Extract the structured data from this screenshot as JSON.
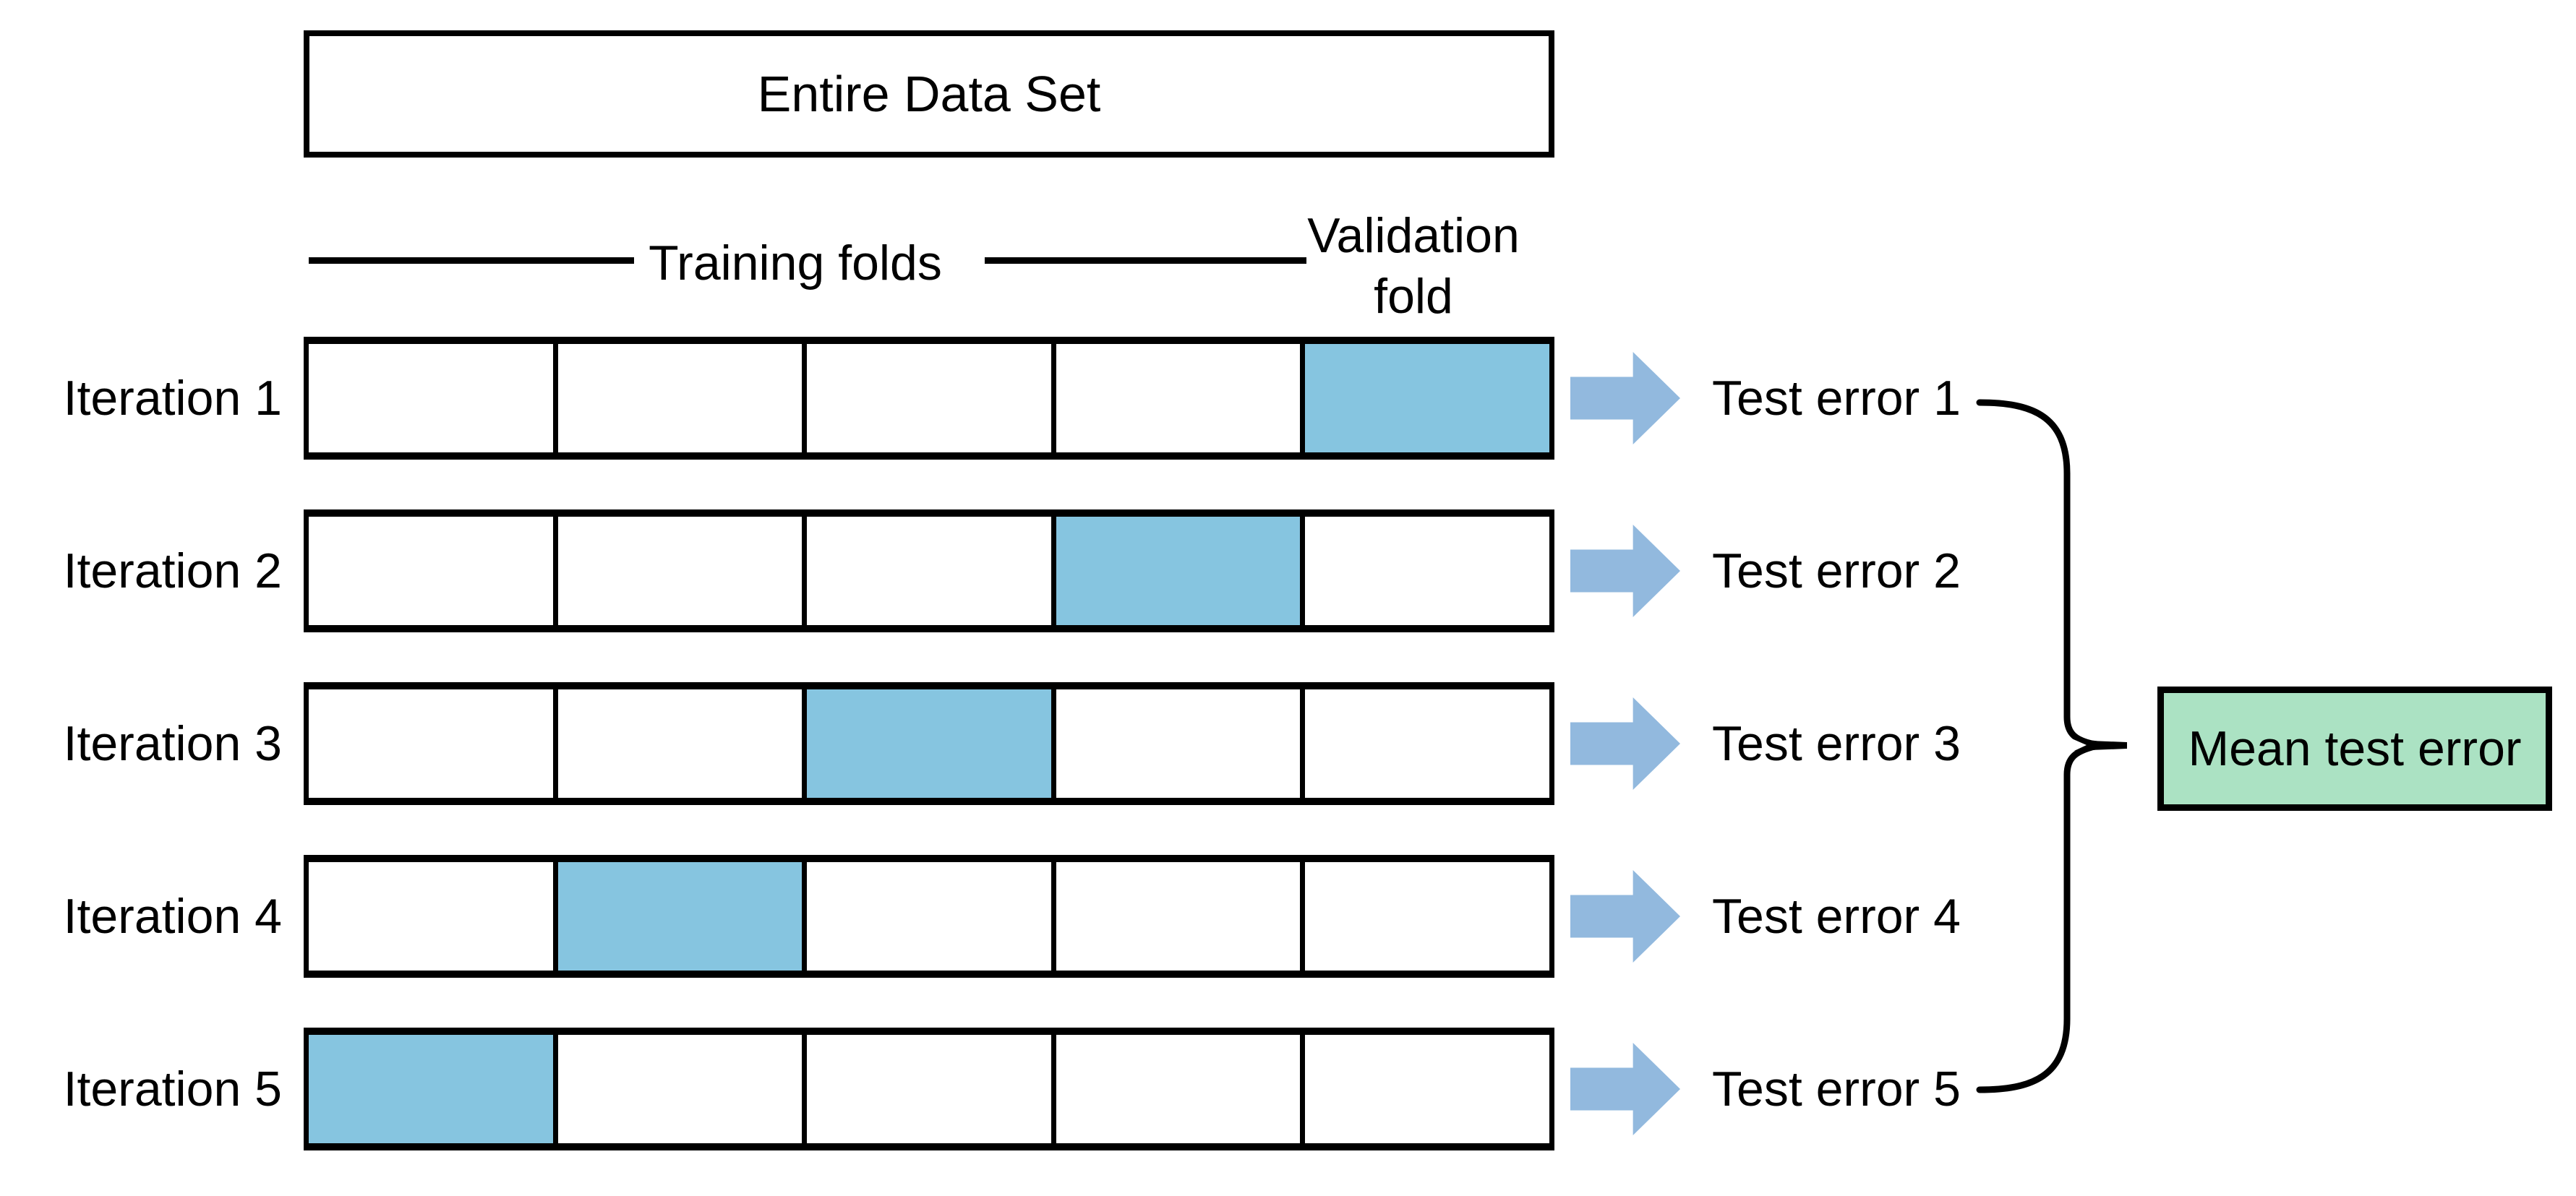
{
  "diagram": {
    "title_box": {
      "label": "Entire Data Set"
    },
    "legend": {
      "training_label": "Training folds",
      "validation_lines": [
        "Validation",
        "fold"
      ]
    },
    "folds_per_row": 5,
    "iterations": [
      {
        "label": "Iteration 1",
        "validation_fold_index": 4,
        "test_error_label": "Test error 1"
      },
      {
        "label": "Iteration 2",
        "validation_fold_index": 3,
        "test_error_label": "Test error 2"
      },
      {
        "label": "Iteration 3",
        "validation_fold_index": 2,
        "test_error_label": "Test error 3"
      },
      {
        "label": "Iteration 4",
        "validation_fold_index": 1,
        "test_error_label": "Test error 4"
      },
      {
        "label": "Iteration 5",
        "validation_fold_index": 0,
        "test_error_label": "Test error 5"
      }
    ],
    "mean_box": {
      "label": "Mean test error"
    },
    "colors": {
      "validation_fold_fill": "#86c5e0",
      "arrow_fill": "#92b9de",
      "mean_box_fill": "#abe2c3",
      "line": "#000000"
    }
  }
}
